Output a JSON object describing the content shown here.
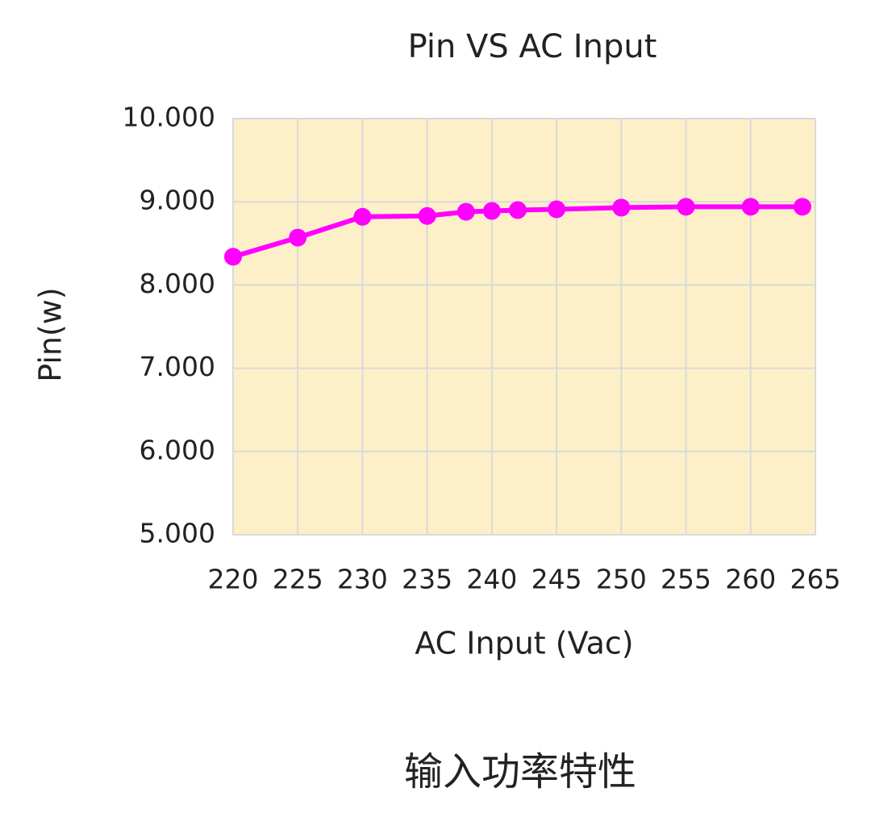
{
  "chart_data": {
    "type": "line",
    "title": "Pin VS AC Input",
    "x_label": "AC Input (Vac)",
    "y_label": "Pin(w)",
    "x": [
      220,
      225,
      230,
      235,
      238,
      240,
      242,
      245,
      250,
      255,
      260,
      264
    ],
    "series": [
      {
        "name": "Pin",
        "color": "#ff00ff",
        "values": [
          8.34,
          8.57,
          8.82,
          8.83,
          8.88,
          8.89,
          8.9,
          8.91,
          8.93,
          8.94,
          8.94,
          8.94
        ]
      }
    ],
    "xlim": [
      220,
      265
    ],
    "xticks": [
      220,
      225,
      230,
      235,
      240,
      245,
      250,
      255,
      260,
      265
    ],
    "ylim": [
      5,
      10
    ],
    "yticks": [
      {
        "value": 5,
        "label": "5.000"
      },
      {
        "value": 6,
        "label": "6.000"
      },
      {
        "value": 7,
        "label": "7.000"
      },
      {
        "value": 8,
        "label": "8.000"
      },
      {
        "value": 9,
        "label": "9.000"
      },
      {
        "value": 10,
        "label": "10.000"
      }
    ],
    "grid": true,
    "plot_background": "#fdf0c8"
  },
  "caption": "输入功率特性"
}
